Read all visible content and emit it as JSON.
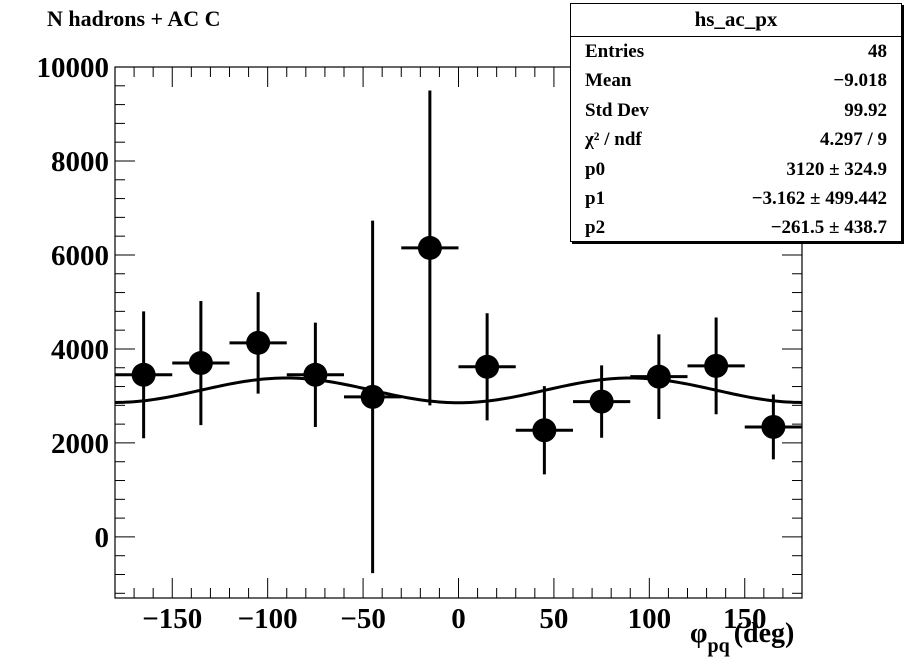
{
  "title": "N hadrons + AC C",
  "stats": {
    "name": "hs_ac_px",
    "rows": [
      {
        "key": "Entries",
        "value": "48"
      },
      {
        "key": "Mean",
        "value": "−9.018"
      },
      {
        "key": "Std Dev",
        "value": "99.92"
      },
      {
        "key": "χ² / ndf",
        "value": "4.297 / 9"
      },
      {
        "key": "p0",
        "value": "3120  ± 324.9"
      },
      {
        "key": "p1",
        "value": "−3.162  ± 499.442"
      },
      {
        "key": "p2",
        "value": "−261.5  ± 438.7"
      }
    ]
  },
  "chart_data": {
    "type": "scatter",
    "title": "N hadrons + AC C",
    "xlabel": "φpq (deg)",
    "xlabel_symbol": "φ",
    "xlabel_subscript": "pq",
    "xlabel_unit": "(deg)",
    "ylabel": "",
    "xlim": [
      -180,
      180
    ],
    "ylim": [
      -1300,
      10000
    ],
    "x_ticks": [
      -150,
      -100,
      -50,
      0,
      50,
      100,
      150
    ],
    "x_tick_labels": [
      "−150",
      "−100",
      "−50",
      "0",
      "50",
      "100",
      "150"
    ],
    "y_ticks": [
      0,
      2000,
      4000,
      6000,
      8000,
      10000
    ],
    "y_tick_labels": [
      "0",
      "2000",
      "4000",
      "6000",
      "8000",
      "10000"
    ],
    "grid": false,
    "bin_half_width": 15,
    "points": [
      {
        "x": -165,
        "y": 3450,
        "err": 1350
      },
      {
        "x": -135,
        "y": 3700,
        "err": 1320
      },
      {
        "x": -105,
        "y": 4130,
        "err": 1080
      },
      {
        "x": -75,
        "y": 3450,
        "err": 1110
      },
      {
        "x": -45,
        "y": 2980,
        "err": 3750
      },
      {
        "x": -15,
        "y": 6150,
        "err": 3350
      },
      {
        "x": 15,
        "y": 3620,
        "err": 1140
      },
      {
        "x": 45,
        "y": 2270,
        "err": 940
      },
      {
        "x": 75,
        "y": 2880,
        "err": 770
      },
      {
        "x": 105,
        "y": 3410,
        "err": 900
      },
      {
        "x": 135,
        "y": 3640,
        "err": 1030
      },
      {
        "x": 165,
        "y": 2340,
        "err": 690
      }
    ],
    "fit": {
      "p0": 3120,
      "p1": -3.162,
      "p2": -261.5
    }
  }
}
